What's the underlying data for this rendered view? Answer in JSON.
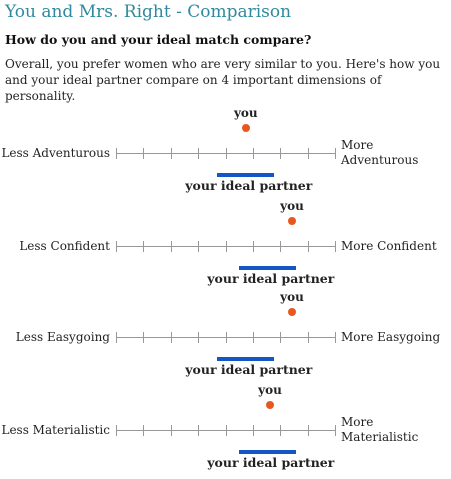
{
  "header": {
    "title": "You and Mrs. Right - Comparison",
    "subtitle": "How do you and your ideal match compare?",
    "intro": "Overall, you prefer women who are very similar to you. Here's how you and your ideal partner compare on 4 important dimensions of personality."
  },
  "colors": {
    "title": "#2f8a9e",
    "you_dot": "#e8571e",
    "partner_bar": "#1257c4"
  },
  "labels": {
    "you": "you",
    "partner": "your ideal partner"
  },
  "scale": {
    "ticks": 9
  },
  "dimensions": [
    {
      "left": "Less Adventurous",
      "right": "More Adventurous",
      "you": 0.59,
      "partner_start": 0.46,
      "partner_end": 0.72
    },
    {
      "left": "Less Confident",
      "right": "More Confident",
      "you": 0.8,
      "partner_start": 0.56,
      "partner_end": 0.82
    },
    {
      "left": "Less Easygoing",
      "right": "More Easygoing",
      "you": 0.8,
      "partner_start": 0.46,
      "partner_end": 0.72
    },
    {
      "left": "Less Materialistic",
      "right": "More Materialistic",
      "you": 0.7,
      "partner_start": 0.56,
      "partner_end": 0.82
    }
  ]
}
